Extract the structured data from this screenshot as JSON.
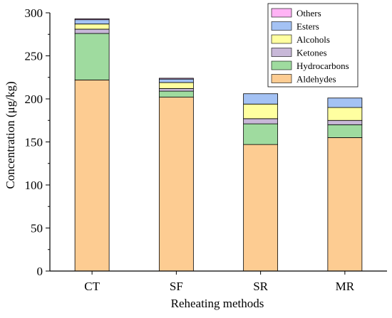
{
  "chart_data": {
    "type": "bar",
    "stacked": true,
    "xlabel": "Reheating methods",
    "ylabel": "Concentration (μg/kg)",
    "categories": [
      "CT",
      "SF",
      "SR",
      "MR"
    ],
    "ylim": [
      0,
      300
    ],
    "yticks": [
      0,
      50,
      100,
      150,
      200,
      250,
      300
    ],
    "grid": false,
    "legend_position": "top-right",
    "series": [
      {
        "name": "Aldehydes",
        "color": "#FDCC92",
        "values": [
          222,
          202,
          147,
          155
        ]
      },
      {
        "name": "Hydrocarbons",
        "color": "#9FDB9F",
        "values": [
          54,
          7,
          24,
          15
        ]
      },
      {
        "name": "Ketones",
        "color": "#C8B8D8",
        "values": [
          5,
          3,
          6,
          5
        ]
      },
      {
        "name": "Alcohols",
        "color": "#FFFFA0",
        "values": [
          6,
          7,
          17,
          15
        ]
      },
      {
        "name": "Esters",
        "color": "#A4C2F4",
        "values": [
          5,
          4,
          12,
          11
        ]
      },
      {
        "name": "Others",
        "color": "#FFB3F5",
        "values": [
          1,
          1,
          0,
          0
        ]
      }
    ]
  }
}
